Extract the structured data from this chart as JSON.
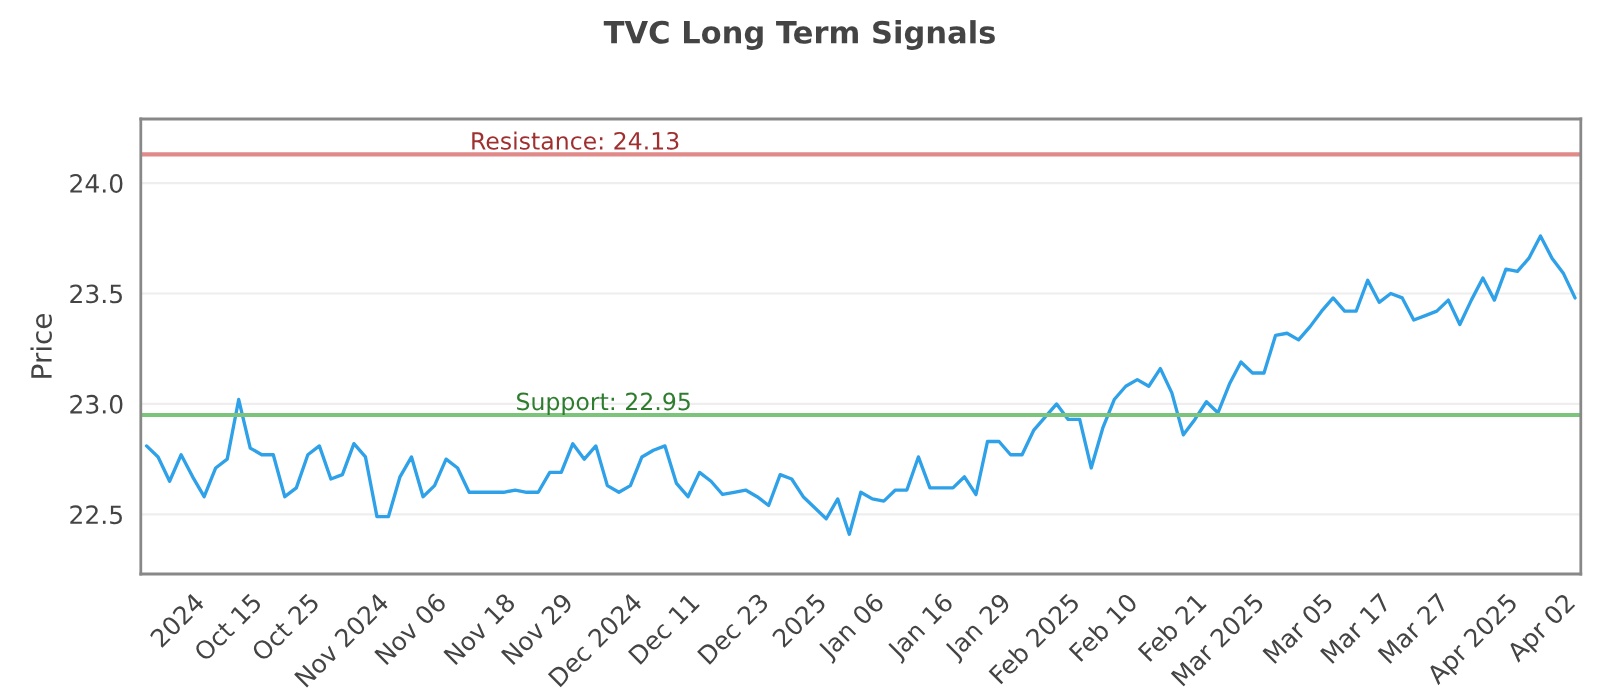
{
  "chart_data": {
    "type": "line",
    "title": "TVC Long Term Signals",
    "ylabel": "Price",
    "categories": [
      null,
      null,
      null,
      null,
      "2024",
      null,
      null,
      null,
      null,
      "Oct 15",
      null,
      null,
      null,
      null,
      "Oct 25",
      null,
      null,
      null,
      null,
      null,
      "Nov 2024",
      null,
      null,
      null,
      null,
      "Nov 06",
      null,
      null,
      null,
      null,
      null,
      "Nov 18",
      null,
      null,
      null,
      null,
      "Nov 29",
      null,
      null,
      null,
      null,
      null,
      "Dec 2024",
      null,
      null,
      null,
      null,
      "Dec 11",
      null,
      null,
      null,
      null,
      null,
      "Dec 23",
      null,
      null,
      null,
      null,
      "2025",
      null,
      null,
      null,
      null,
      "Jan 06",
      null,
      null,
      null,
      null,
      null,
      "Jan 16",
      null,
      null,
      null,
      null,
      "Jan 29",
      null,
      null,
      null,
      null,
      null,
      "Feb 2025",
      null,
      null,
      null,
      null,
      "Feb 10",
      null,
      null,
      null,
      null,
      null,
      "Feb 21",
      null,
      null,
      null,
      null,
      "Mar 2025",
      null,
      null,
      null,
      null,
      null,
      "Mar 05",
      null,
      null,
      null,
      null,
      "Mar 17",
      null,
      null,
      null,
      null,
      "Mar 27",
      null,
      null,
      null,
      null,
      null,
      "Apr 2025",
      null,
      null,
      null,
      null,
      "Apr 02",
      null
    ],
    "series": [
      {
        "color": "#2ea1e8",
        "values": [
          22.81,
          22.76,
          22.65,
          22.77,
          22.67,
          22.58,
          22.71,
          22.75,
          23.02,
          22.8,
          22.77,
          22.77,
          22.58,
          22.62,
          22.77,
          22.81,
          22.66,
          22.68,
          22.82,
          22.76,
          22.49,
          22.49,
          22.67,
          22.76,
          22.58,
          22.63,
          22.75,
          22.71,
          22.6,
          22.6,
          22.6,
          22.6,
          22.61,
          22.6,
          22.6,
          22.69,
          22.69,
          22.82,
          22.75,
          22.81,
          22.63,
          22.6,
          22.63,
          22.76,
          22.79,
          22.81,
          22.64,
          22.58,
          22.69,
          22.65,
          22.59,
          22.6,
          22.61,
          22.58,
          22.54,
          22.68,
          22.66,
          22.58,
          22.53,
          22.48,
          22.57,
          22.41,
          22.6,
          22.57,
          22.56,
          22.61,
          22.61,
          22.76,
          22.62,
          22.62,
          22.62,
          22.67,
          22.59,
          22.83,
          22.83,
          22.77,
          22.77,
          22.88,
          22.94,
          23.0,
          22.93,
          22.93,
          22.71,
          22.89,
          23.02,
          23.08,
          23.11,
          23.08,
          23.16,
          23.05,
          22.86,
          22.93,
          23.01,
          22.96,
          23.09,
          23.19,
          23.14,
          23.14,
          23.31,
          23.32,
          23.29,
          23.35,
          23.42,
          23.48,
          23.42,
          23.42,
          23.56,
          23.46,
          23.5,
          23.48,
          23.38,
          23.4,
          23.42,
          23.47,
          23.36,
          23.47,
          23.57,
          23.47,
          23.61,
          23.6,
          23.66,
          23.76,
          23.66,
          23.59,
          23.48
        ]
      }
    ],
    "ylim": [
      22.23,
      24.29
    ],
    "yticks": [
      {
        "value": 22.5,
        "label": "22.5"
      },
      {
        "value": 23,
        "label": "23.0"
      },
      {
        "value": 23.5,
        "label": "23.5"
      },
      {
        "value": 24,
        "label": "24.0"
      }
    ],
    "ref_lines": [
      {
        "axis": "y",
        "value": 24.13,
        "label": "Resistance: 24.13",
        "color": "#e08a8a"
      },
      {
        "axis": "y",
        "value": 22.95,
        "label": "Support: 22.95",
        "color": "#7cc47c"
      }
    ],
    "grid": "y",
    "marker": "none",
    "line_style": "solid"
  }
}
